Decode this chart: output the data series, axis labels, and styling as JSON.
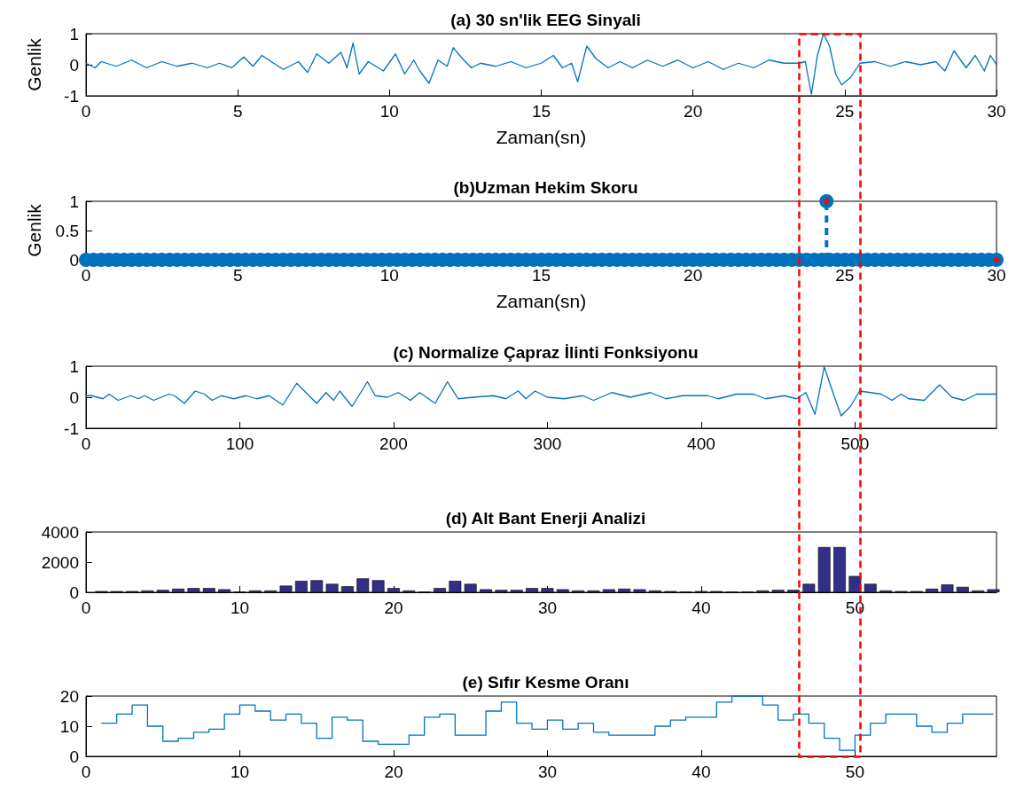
{
  "chart_data": [
    {
      "type": "line",
      "title": "(a) 30 sn'lik EEG Sinyali",
      "xlabel": "Zaman(sn)",
      "ylabel": "Genlik",
      "x": [
        0,
        0.3,
        0.5,
        1,
        1.5,
        2,
        2.5,
        3,
        3.5,
        4,
        4.4,
        4.8,
        5.2,
        5.5,
        5.8,
        6.1,
        6.5,
        7,
        7.3,
        7.6,
        8,
        8.4,
        8.6,
        8.8,
        9,
        9.3,
        9.8,
        10.2,
        10.5,
        10.8,
        11,
        11.3,
        11.6,
        11.9,
        12.1,
        12.4,
        12.7,
        13,
        13.5,
        14,
        14.5,
        15,
        15.4,
        15.7,
        16,
        16.2,
        16.5,
        16.8,
        17.2,
        17.6,
        18,
        18.5,
        19,
        19.5,
        20,
        20.5,
        21,
        21.5,
        22,
        22.5,
        23,
        23.5,
        23.7,
        23.9,
        24.1,
        24.3,
        24.5,
        24.7,
        24.9,
        25.2,
        25.5,
        26,
        26.5,
        27,
        27.5,
        28,
        28.3,
        28.6,
        29,
        29.3,
        29.6,
        29.8,
        30
      ],
      "series": [
        {
          "color": "#0072bd",
          "values": [
            0.05,
            -0.1,
            0.1,
            -0.05,
            0.15,
            -0.1,
            0.1,
            -0.05,
            0.05,
            -0.1,
            0.05,
            -0.1,
            0.25,
            -0.05,
            0.3,
            0.1,
            -0.15,
            0.1,
            -0.25,
            0.35,
            0.05,
            0.4,
            -0.1,
            0.7,
            -0.3,
            0.1,
            -0.2,
            0.35,
            -0.3,
            0.15,
            -0.2,
            -0.6,
            0.15,
            -0.05,
            0.55,
            0.2,
            -0.1,
            0.05,
            -0.05,
            0.1,
            -0.1,
            0.05,
            0.3,
            -0.1,
            0.05,
            -0.55,
            0.6,
            0.2,
            -0.1,
            0.1,
            -0.1,
            0.15,
            -0.05,
            0.15,
            -0.1,
            0.1,
            -0.15,
            0.05,
            -0.1,
            0.15,
            0.05,
            0.05,
            0.1,
            -0.95,
            0.3,
            1,
            0.6,
            -0.3,
            -0.65,
            -0.4,
            0.05,
            0.1,
            -0.05,
            0.1,
            0,
            0.1,
            -0.2,
            0.45,
            -0.1,
            0.3,
            -0.2,
            0.3,
            0
          ]
        }
      ],
      "xlim": [
        0,
        30
      ],
      "xticks": [
        0,
        5,
        10,
        15,
        20,
        25,
        30
      ],
      "ylim": [
        -1,
        1
      ],
      "yticks": [
        -1,
        0,
        1
      ],
      "grid": false
    },
    {
      "type": "lollipop",
      "title": "(b)Uzman Hekim Skoru",
      "xlabel": "Zaman(sn)",
      "ylabel": "Genlik",
      "marker": "circle",
      "line_style": "dashed",
      "series": [
        {
          "color": "#0072bd",
          "x": [
            0,
            0.25,
            0.5,
            0.75,
            1,
            1.25,
            1.5,
            1.75,
            2,
            2.25,
            2.5,
            2.75,
            3,
            3.25,
            3.5,
            3.75,
            4,
            4.25,
            4.5,
            4.75,
            5,
            5.25,
            5.5,
            5.75,
            6,
            6.25,
            6.5,
            6.75,
            7,
            7.25,
            7.5,
            7.75,
            8,
            8.25,
            8.5,
            8.75,
            9,
            9.25,
            9.5,
            9.75,
            10,
            10.25,
            10.5,
            10.75,
            11,
            11.25,
            11.5,
            11.75,
            12,
            12.25,
            12.5,
            12.75,
            13,
            13.25,
            13.5,
            13.75,
            14,
            14.25,
            14.5,
            14.75,
            15,
            15.25,
            15.5,
            15.75,
            16,
            16.25,
            16.5,
            16.75,
            17,
            17.25,
            17.5,
            17.75,
            18,
            18.25,
            18.5,
            18.75,
            19,
            19.25,
            19.5,
            19.75,
            20,
            20.25,
            20.5,
            20.75,
            21,
            21.25,
            21.5,
            21.75,
            22,
            22.25,
            22.5,
            22.75,
            23,
            23.25,
            23.5,
            23.75,
            24,
            24.25,
            24.4,
            24.5,
            24.75,
            25,
            25.25,
            25.5,
            25.75,
            26,
            26.25,
            26.5,
            26.75,
            27,
            27.25,
            27.5,
            27.75,
            28,
            28.25,
            28.5,
            28.75,
            29,
            29.25,
            29.5,
            29.75,
            30
          ],
          "values": [
            0,
            0,
            0,
            0,
            0,
            0,
            0,
            0,
            0,
            0,
            0,
            0,
            0,
            0,
            0,
            0,
            0,
            0,
            0,
            0,
            0,
            0,
            0,
            0,
            0,
            0,
            0,
            0,
            0,
            0,
            0,
            0,
            0,
            0,
            0,
            0,
            0,
            0,
            0,
            0,
            0,
            0,
            0,
            0,
            0,
            0,
            0,
            0,
            0,
            0,
            0,
            0,
            0,
            0,
            0,
            0,
            0,
            0,
            0,
            0,
            0,
            0,
            0,
            0,
            0,
            0,
            0,
            0,
            0,
            0,
            0,
            0,
            0,
            0,
            0,
            0,
            0,
            0,
            0,
            0,
            0,
            0,
            0,
            0,
            0,
            0,
            0,
            0,
            0,
            0,
            0,
            0,
            0,
            0,
            0,
            0,
            0,
            0,
            1,
            0,
            0,
            0,
            0,
            0,
            0,
            0,
            0,
            0,
            0,
            0,
            0,
            0,
            0,
            0,
            0,
            0,
            0,
            0,
            0,
            0,
            0,
            0
          ]
        },
        {
          "type": "scatter",
          "color": "#ff0000",
          "x": [
            24.4,
            30
          ],
          "values": [
            1,
            0
          ]
        }
      ],
      "xlim": [
        0,
        30
      ],
      "xticks": [
        0,
        5,
        10,
        15,
        20,
        25,
        30
      ],
      "ylim": [
        0,
        1
      ],
      "yticks": [
        0,
        0.5,
        1
      ],
      "grid": false
    },
    {
      "type": "line",
      "title": "(c) Normalize Çapraz İlinti Fonksiyonu",
      "x": [
        0,
        3.7,
        11,
        15,
        21,
        29,
        34,
        38,
        44,
        54,
        57.5,
        64,
        71,
        77,
        82,
        88,
        96,
        104,
        111,
        119,
        128,
        137,
        144,
        150,
        156,
        161,
        165,
        173,
        183,
        188,
        196,
        203,
        211,
        217,
        227,
        235,
        242,
        252,
        265,
        273,
        281,
        286,
        292,
        300,
        311,
        323,
        330,
        342,
        354,
        367,
        377,
        388,
        404,
        411,
        423,
        434,
        442,
        454,
        462,
        468,
        474,
        480,
        486,
        491,
        497,
        503,
        517,
        524,
        530,
        535,
        545,
        555,
        563,
        571,
        579,
        592
      ],
      "series": [
        {
          "color": "#0072bd",
          "values": [
            0.05,
            0.05,
            -0.05,
            0.1,
            -0.1,
            0.05,
            -0.05,
            0.05,
            -0.1,
            0.1,
            0.05,
            -0.2,
            0.2,
            0.1,
            -0.1,
            0.05,
            -0.05,
            0.05,
            -0.05,
            0.05,
            -0.25,
            0.45,
            0.1,
            -0.2,
            0.15,
            -0.1,
            0.2,
            -0.3,
            0.5,
            0.05,
            0,
            0.15,
            -0.1,
            0.15,
            -0.2,
            0.5,
            -0.05,
            0,
            0.05,
            -0.05,
            0.2,
            -0.05,
            0.2,
            0,
            -0.05,
            0.05,
            -0.1,
            0.15,
            0,
            0.15,
            -0.05,
            0.05,
            0.05,
            -0.05,
            0.1,
            0.1,
            -0.05,
            0.05,
            -0.05,
            0.15,
            -0.55,
            0.98,
            0.1,
            -0.6,
            -0.3,
            0.2,
            0.1,
            -0.1,
            0.1,
            -0.05,
            -0.1,
            0.4,
            0,
            -0.1,
            0.1,
            0.1
          ]
        }
      ],
      "xlim": [
        0,
        592
      ],
      "xticks": [
        0,
        100,
        200,
        300,
        400,
        500
      ],
      "ylim": [
        -1,
        1
      ],
      "yticks": [
        -1,
        0,
        1
      ],
      "grid": false
    },
    {
      "type": "bar",
      "title": "(d) Alt Bant Enerji Analizi",
      "x": [
        1,
        2,
        3,
        4,
        5,
        6,
        7,
        8,
        9,
        10,
        11,
        12,
        13,
        14,
        15,
        16,
        17,
        18,
        19,
        20,
        21,
        22,
        23,
        24,
        25,
        26,
        27,
        28,
        29,
        30,
        31,
        32,
        33,
        34,
        35,
        36,
        37,
        38,
        39,
        40,
        41,
        42,
        43,
        44,
        45,
        46,
        47,
        48,
        49,
        50,
        51,
        52,
        53,
        54,
        55,
        56,
        57,
        58,
        59
      ],
      "series": [
        {
          "color": "#332f88",
          "values": [
            80,
            80,
            80,
            120,
            160,
            240,
            280,
            280,
            200,
            40,
            120,
            120,
            440,
            760,
            800,
            560,
            400,
            920,
            800,
            280,
            120,
            40,
            280,
            760,
            560,
            200,
            160,
            160,
            280,
            280,
            200,
            120,
            120,
            200,
            240,
            200,
            120,
            80,
            40,
            80,
            80,
            40,
            40,
            120,
            160,
            160,
            560,
            3000,
            3000,
            1080,
            560,
            120,
            80,
            80,
            240,
            520,
            360,
            120,
            200
          ]
        }
      ],
      "xlim": [
        0,
        59.2
      ],
      "xticks": [
        0,
        10,
        20,
        30,
        40,
        50
      ],
      "ylim": [
        0,
        4000
      ],
      "yticks": [
        0,
        2000,
        4000
      ],
      "grid": false
    },
    {
      "type": "step",
      "title": "(e) Sıfır Kesme Oranı",
      "x": [
        1,
        2,
        3,
        4,
        5,
        6,
        7,
        8,
        9,
        10,
        11,
        12,
        13,
        14,
        15,
        16,
        17,
        18,
        19,
        20,
        21,
        22,
        23,
        24,
        25,
        26,
        27,
        28,
        29,
        30,
        31,
        32,
        33,
        34,
        35,
        36,
        37,
        38,
        39,
        40,
        41,
        42,
        43,
        44,
        45,
        46,
        47,
        48,
        49,
        50,
        51,
        52,
        53,
        54,
        55,
        56,
        57,
        58,
        59
      ],
      "series": [
        {
          "color": "#0072bd",
          "values": [
            11,
            14,
            17,
            10,
            5,
            6,
            8,
            9,
            14,
            17,
            15,
            12,
            14,
            11,
            6,
            13,
            12,
            5,
            4,
            4,
            7,
            13,
            14,
            7,
            7,
            15,
            18,
            11,
            9,
            12,
            9,
            11,
            8,
            7,
            7,
            7,
            10,
            12,
            13,
            13,
            18,
            20,
            20,
            17,
            12,
            14,
            11,
            6,
            2,
            7,
            11,
            14,
            14,
            10,
            8,
            11,
            14,
            14,
            14
          ]
        }
      ],
      "xlim": [
        0,
        59.2
      ],
      "xticks": [
        0,
        10,
        20,
        30,
        40,
        50
      ],
      "ylim": [
        0,
        20
      ],
      "yticks": [
        0,
        10,
        20
      ],
      "grid": false
    }
  ]
}
